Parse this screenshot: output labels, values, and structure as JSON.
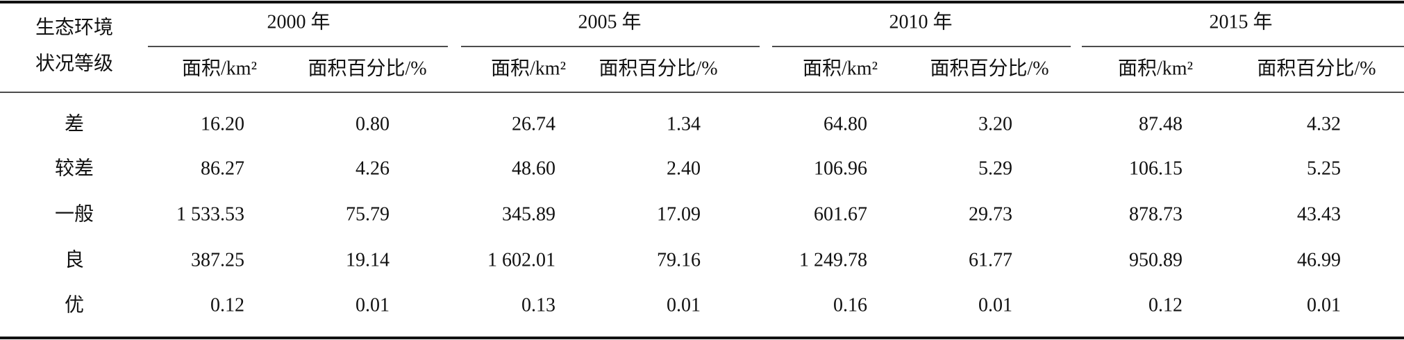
{
  "table": {
    "row_header": [
      "生态环境",
      "状况等级"
    ],
    "groups": [
      {
        "year": "2000 年",
        "columns": [
          "面积/km²",
          "面积百分比/%"
        ]
      },
      {
        "year": "2005 年",
        "columns": [
          "面积/km²",
          "面积百分比/%"
        ]
      },
      {
        "year": "2010 年",
        "columns": [
          "面积/km²",
          "面积百分比/%"
        ]
      },
      {
        "year": "2015 年",
        "columns": [
          "面积/km²",
          "面积百分比/%"
        ]
      }
    ],
    "rows": [
      {
        "grade": "差",
        "values": [
          "16.20",
          "0.80",
          "26.74",
          "1.34",
          "64.80",
          "3.20",
          "87.48",
          "4.32"
        ]
      },
      {
        "grade": "较差",
        "values": [
          "86.27",
          "4.26",
          "48.60",
          "2.40",
          "106.96",
          "5.29",
          "106.15",
          "5.25"
        ]
      },
      {
        "grade": "一般",
        "values": [
          "1 533.53",
          "75.79",
          "345.89",
          "17.09",
          "601.67",
          "29.73",
          "878.73",
          "43.43"
        ]
      },
      {
        "grade": "良",
        "values": [
          "387.25",
          "19.14",
          "1 602.01",
          "79.16",
          "1 249.78",
          "61.77",
          "950.89",
          "46.99"
        ]
      },
      {
        "grade": "优",
        "values": [
          "0.12",
          "0.01",
          "0.13",
          "0.01",
          "0.16",
          "0.01",
          "0.12",
          "0.01"
        ]
      }
    ]
  }
}
